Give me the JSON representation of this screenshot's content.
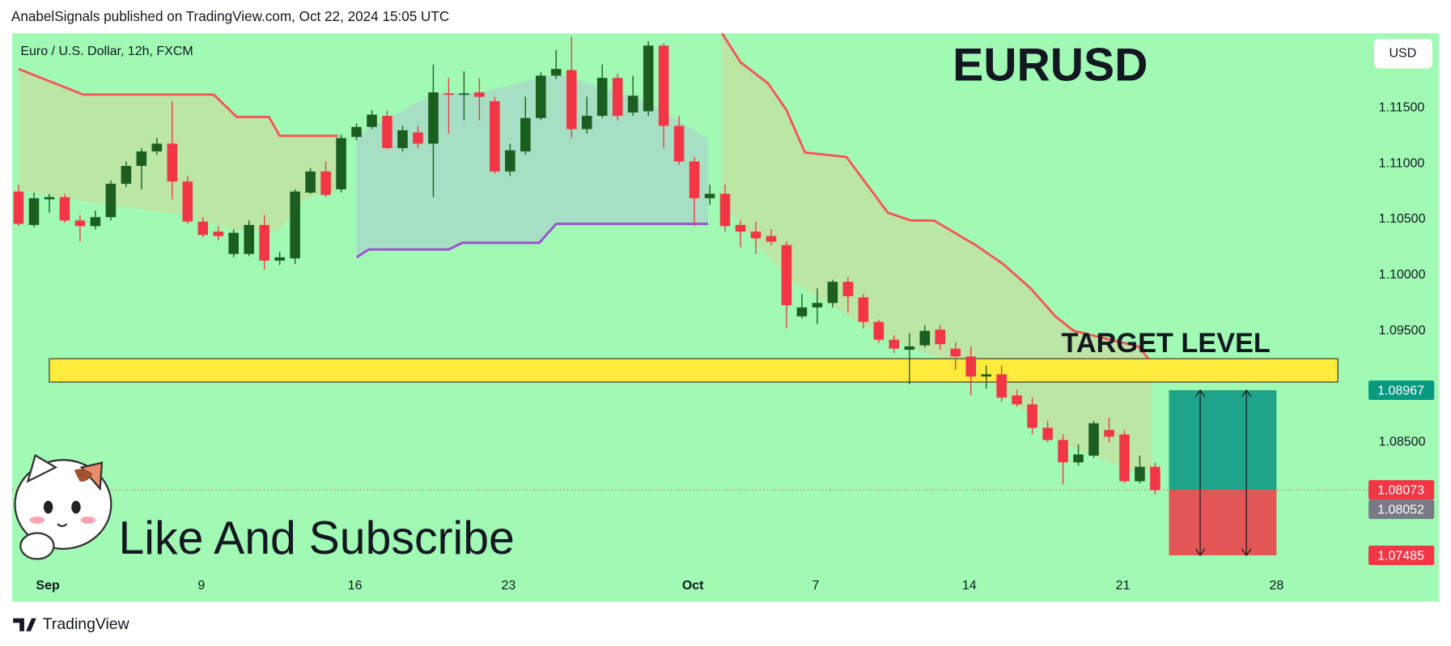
{
  "header": "AnabelSignals published on TradingView.com, Oct 22, 2024 15:05 UTC",
  "footer": "TradingView",
  "chart_data": {
    "type": "candlestick",
    "title": "EURUSD",
    "subtitle": "Euro / U.S. Dollar, 12h, FXCM",
    "currency": "USD",
    "caption": "Like And Subscribe",
    "up_color": "#1b5e20",
    "down_color": "#f23645",
    "candles": {
      "open": [
        1.1075,
        1.1045,
        1.1068,
        1.107,
        1.1049,
        1.1044,
        1.1052,
        1.1082,
        1.1098,
        1.1111,
        1.1118,
        1.1084,
        1.1048,
        1.1039,
        1.1019,
        1.1019,
        1.1045,
        1.1013,
        1.1015,
        1.1074,
        1.1093,
        1.1077,
        1.1124,
        1.1133,
        1.1143,
        1.1114,
        1.1128,
        1.1118,
        1.1163,
        1.1162,
        1.1164,
        1.1156,
        1.1093,
        1.1111,
        1.1141,
        1.1179,
        1.1184,
        1.1131,
        1.1143,
        1.1177,
        1.1146,
        1.1147,
        1.1206,
        1.1134,
        1.1102,
        1.1069,
        1.1073,
        1.1045,
        1.1039,
        1.1035,
        1.1027,
        1.0963,
        1.0971,
        1.0975,
        1.0994,
        1.098,
        1.0958,
        1.0942,
        1.0933,
        1.0937,
        1.0951,
        1.0934,
        1.0927,
        1.0909,
        1.0911,
        1.0892,
        1.0884,
        1.0863,
        1.0852,
        1.0832,
        1.0838,
        1.0861,
        1.0857,
        1.0815,
        1.0828
      ],
      "high": [
        1.1081,
        1.1074,
        1.1073,
        1.1073,
        1.1054,
        1.1058,
        1.1085,
        1.1102,
        1.1114,
        1.1123,
        1.1156,
        1.1089,
        1.1052,
        1.1044,
        1.1041,
        1.1049,
        1.1054,
        1.1021,
        1.1077,
        1.1096,
        1.1102,
        1.1126,
        1.1136,
        1.1148,
        1.1148,
        1.1134,
        1.1134,
        1.1189,
        1.1177,
        1.1183,
        1.1177,
        1.116,
        1.1118,
        1.116,
        1.1182,
        1.1202,
        1.1214,
        1.116,
        1.1189,
        1.1181,
        1.1179,
        1.121,
        1.1208,
        1.1143,
        1.1106,
        1.1081,
        1.1081,
        1.1049,
        1.1048,
        1.1041,
        1.103,
        1.0983,
        1.0988,
        1.0996,
        1.0998,
        1.0983,
        1.096,
        1.0946,
        1.0948,
        1.0955,
        1.0955,
        1.094,
        1.0936,
        1.0919,
        1.0919,
        1.0897,
        1.089,
        1.0869,
        1.0857,
        1.0848,
        1.0869,
        1.0872,
        1.0861,
        1.0838,
        1.0832
      ],
      "low": [
        1.1044,
        1.1043,
        1.1056,
        1.1047,
        1.103,
        1.1041,
        1.1049,
        1.1079,
        1.1077,
        1.1108,
        1.1068,
        1.1046,
        1.1034,
        1.1031,
        1.1016,
        1.1017,
        1.1005,
        1.1009,
        1.101,
        1.1073,
        1.107,
        1.1074,
        1.1121,
        1.1131,
        1.1113,
        1.1111,
        1.1114,
        1.107,
        1.1127,
        1.1139,
        1.1139,
        1.1091,
        1.1089,
        1.1108,
        1.1139,
        1.1176,
        1.1123,
        1.1127,
        1.1141,
        1.1139,
        1.1143,
        1.1143,
        1.1114,
        1.1099,
        1.1044,
        1.1063,
        1.1039,
        1.1025,
        1.1019,
        1.1027,
        1.0952,
        1.0961,
        1.0956,
        1.0971,
        1.0966,
        1.0952,
        1.0939,
        1.093,
        1.0902,
        1.0935,
        1.0933,
        1.0915,
        1.0892,
        1.0898,
        1.0886,
        1.0882,
        1.0857,
        1.085,
        1.0812,
        1.0829,
        1.0836,
        1.085,
        1.0813,
        1.0813,
        1.0803
      ],
      "close": [
        1.1046,
        1.1069,
        1.107,
        1.1049,
        1.1044,
        1.1052,
        1.1082,
        1.1098,
        1.1111,
        1.1118,
        1.1084,
        1.1048,
        1.1036,
        1.1035,
        1.1038,
        1.1045,
        1.1013,
        1.1016,
        1.1075,
        1.1093,
        1.1072,
        1.1123,
        1.1133,
        1.1144,
        1.1114,
        1.113,
        1.1118,
        1.1164,
        1.1162,
        1.1163,
        1.116,
        1.1093,
        1.1112,
        1.1141,
        1.1179,
        1.1185,
        1.1131,
        1.1143,
        1.1177,
        1.1143,
        1.1161,
        1.1206,
        1.1134,
        1.1102,
        1.1069,
        1.1073,
        1.1044,
        1.1039,
        1.1033,
        1.103,
        1.0973,
        1.0971,
        1.0975,
        1.0994,
        1.0981,
        1.0958,
        1.0942,
        1.0934,
        1.0936,
        1.095,
        1.0938,
        1.0927,
        1.0909,
        1.0911,
        1.089,
        1.0884,
        1.0863,
        1.0852,
        1.0832,
        1.0839,
        1.0867,
        1.0855,
        1.0815,
        1.0828,
        1.0807
      ]
    },
    "xlim": [
      -0.42,
      87.65
    ],
    "xticks": [
      {
        "value": 1.9,
        "label": "Sep"
      },
      {
        "value": 11.9,
        "label": "9"
      },
      {
        "value": 21.9,
        "label": "16"
      },
      {
        "value": 31.9,
        "label": "23"
      },
      {
        "value": 43.9,
        "label": "Oct"
      },
      {
        "value": 51.9,
        "label": "7"
      },
      {
        "value": 61.9,
        "label": "14"
      },
      {
        "value": 71.9,
        "label": "21"
      },
      {
        "value": 81.9,
        "label": "28"
      }
    ],
    "ylim": [
      1.0707,
      1.1217
    ],
    "yticks": [
      {
        "value": 1.115,
        "label": "1.11500"
      },
      {
        "value": 1.11,
        "label": "1.11000"
      },
      {
        "value": 1.105,
        "label": "1.10500"
      },
      {
        "value": 1.1,
        "label": "1.10000"
      },
      {
        "value": 1.095,
        "label": "1.09500"
      },
      {
        "value": 1.085,
        "label": "1.08500"
      }
    ],
    "grid": false,
    "overlays": [
      {
        "color": "#f5545a",
        "x": [
          0,
          4.2,
          12.7,
          14.2,
          16.3,
          17,
          20.8
        ],
        "values": [
          1.1185,
          1.1162,
          1.1162,
          1.1142,
          1.1142,
          1.1125,
          1.1125
        ]
      },
      {
        "color": "#f5545a",
        "x": [
          45.8,
          47,
          48.8,
          50,
          51.2,
          53.9,
          56.6,
          58.1,
          59.6,
          62.3,
          64.1,
          65.9,
          67.5,
          68.7,
          72.9,
          73.8
        ],
        "values": [
          1.1217,
          1.1191,
          1.1172,
          1.1148,
          1.111,
          1.1106,
          1.1056,
          1.1049,
          1.1049,
          1.1027,
          1.101,
          1.0988,
          1.0963,
          1.095,
          1.0936,
          1.0921
        ]
      },
      {
        "color": "#9c4fd0",
        "x": [
          22,
          22.8,
          28,
          28.9,
          33.9,
          35,
          44.9
        ],
        "values": [
          1.1016,
          1.1023,
          1.1023,
          1.1029,
          1.1029,
          1.1046,
          1.1046
        ]
      }
    ],
    "target_zone": {
      "label": "TARGET LEVEL",
      "color": "#ffeb3b",
      "top": 1.0925,
      "bottom": 1.0904,
      "x": [
        2.0,
        85.9
      ]
    },
    "position": {
      "start": 74.9,
      "end": 81.9,
      "target": 1.08967,
      "entry": 1.08073,
      "stop": 1.07485,
      "target_color": "#1fa38a",
      "stop_color": "#e35757"
    },
    "price_labels": [
      {
        "value": 1.08967,
        "color": "#089981"
      },
      {
        "value": 1.08073,
        "color": "#f23645"
      },
      {
        "value": 1.08052,
        "color": "#787b86"
      },
      {
        "value": 1.07485,
        "color": "#f23645"
      }
    ]
  }
}
